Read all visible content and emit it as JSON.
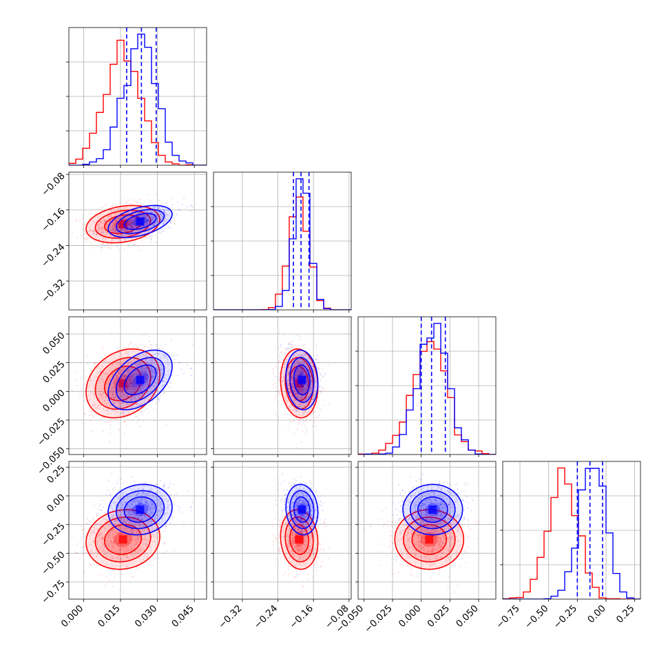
{
  "chart_data": {
    "type": "corner",
    "grid": true,
    "parameters": [
      {
        "range": [
          -0.006,
          0.05
        ],
        "ticks": [
          0.0,
          0.015,
          0.03,
          0.045
        ],
        "tick_labels": [
          "0.000",
          "0.015",
          "0.030",
          "0.045"
        ]
      },
      {
        "range": [
          -0.385,
          -0.075
        ],
        "ticks": [
          -0.32,
          -0.24,
          -0.16,
          -0.08
        ],
        "tick_labels": [
          "−0.32",
          "−0.24",
          "−0.16",
          "−0.08"
        ]
      },
      {
        "range": [
          -0.055,
          0.065
        ],
        "ticks": [
          -0.05,
          -0.025,
          0.0,
          0.025,
          0.05
        ],
        "tick_labels": [
          "−0.050",
          "−0.025",
          "0.000",
          "0.025",
          "0.050"
        ]
      },
      {
        "range": [
          -0.9,
          0.3
        ],
        "ticks": [
          -0.75,
          -0.5,
          -0.25,
          0.0,
          0.25
        ],
        "tick_labels": [
          "−0.75",
          "−0.50",
          "−0.25",
          "0.00",
          "0.25"
        ]
      }
    ],
    "series": [
      {
        "color": "#ff0000",
        "mean": [
          0.016,
          -0.192,
          0.007,
          -0.38
        ],
        "std": [
          0.0075,
          0.021,
          0.015,
          0.13
        ],
        "corr": {
          "0-1": 0.25,
          "0-2": 0.25,
          "0-3": 0.1,
          "1-2": -0.1,
          "1-3": -0.1,
          "2-3": 0.0
        }
      },
      {
        "color": "#0000ff",
        "mean": [
          0.023,
          -0.186,
          0.01,
          -0.12
        ],
        "std": [
          0.0065,
          0.018,
          0.013,
          0.11
        ],
        "corr": {
          "0-1": 0.45,
          "0-2": 0.45,
          "0-3": 0.1,
          "1-2": -0.1,
          "1-3": -0.1,
          "2-3": 0.0
        }
      }
    ],
    "quantile_lines": {
      "color": "#0000ff",
      "values": [
        [
          0.0175,
          0.0235,
          0.0295
        ],
        [
          -0.205,
          -0.188,
          -0.17
        ],
        [
          0.0,
          0.009,
          0.021
        ],
        [
          -0.25,
          -0.14,
          -0.03
        ]
      ]
    }
  }
}
